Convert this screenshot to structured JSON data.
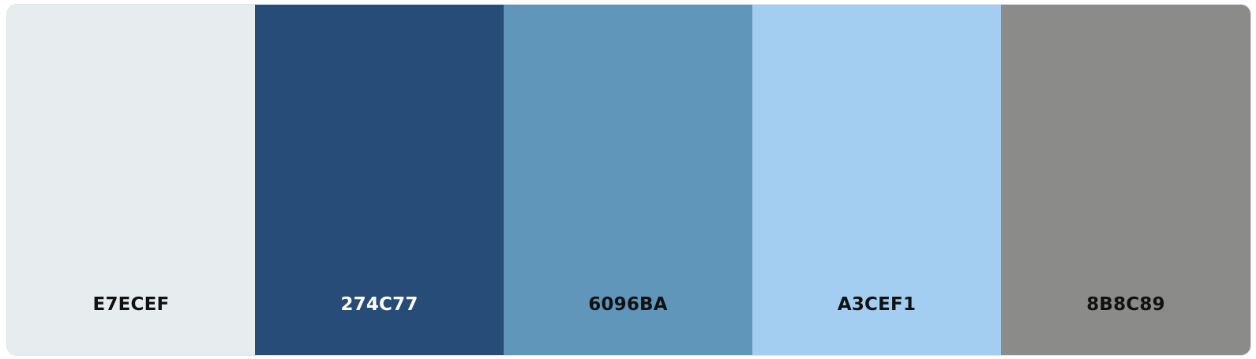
{
  "palette": {
    "swatches": [
      {
        "hex": "E7ECEF",
        "color": "#E7ECEF",
        "text_color": "#111111"
      },
      {
        "hex": "274C77",
        "color": "#274C77",
        "text_color": "#FFFFFF"
      },
      {
        "hex": "6096BA",
        "color": "#6096BA",
        "text_color": "#111111"
      },
      {
        "hex": "A3CEF1",
        "color": "#A3CEF1",
        "text_color": "#111111"
      },
      {
        "hex": "8B8C89",
        "color": "#8B8C89",
        "text_color": "#111111"
      }
    ]
  }
}
